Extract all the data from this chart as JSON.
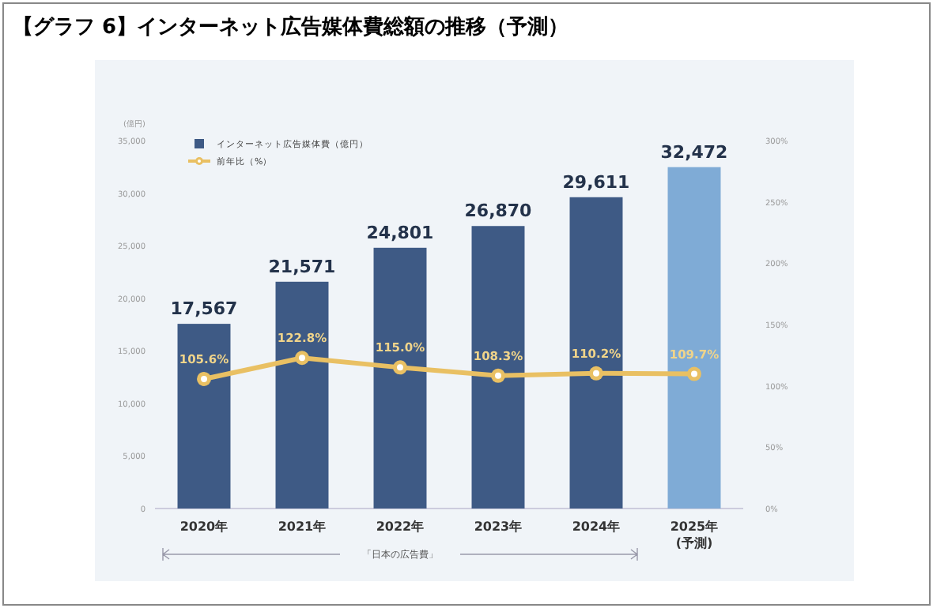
{
  "chart_data": {
    "type": "bar",
    "title": "【グラフ 6】インターネット広告媒体費総額の推移（予測）",
    "categories": [
      "2020年",
      "2021年",
      "2022年",
      "2023年",
      "2024年",
      "2025年\n(予測)"
    ],
    "series": [
      {
        "name": "インターネット広告媒体費（億円）",
        "color": "#3e5a85",
        "colors": [
          "#3e5a85",
          "#3e5a85",
          "#3e5a85",
          "#3e5a85",
          "#3e5a85",
          "#7fabd6"
        ],
        "values": [
          17567,
          21571,
          24801,
          26870,
          29611,
          32472
        ],
        "value_labels": [
          "17,567",
          "21,571",
          "24,801",
          "26,870",
          "29,611",
          "32,472"
        ]
      },
      {
        "name": "前年比（%）",
        "type": "line",
        "axis": "y2",
        "color": "#e9c063",
        "values": [
          105.6,
          122.8,
          115.0,
          108.3,
          110.2,
          109.7
        ],
        "value_labels": [
          "105.6%",
          "122.8%",
          "115.0%",
          "108.3%",
          "110.2%",
          "109.7%"
        ]
      }
    ],
    "ylabel": "(億円)",
    "ylim": [
      0,
      35000
    ],
    "yticks": [
      0,
      {
        "value": 5000,
        "label": "5,000"
      },
      {
        "value": 10000,
        "label": "10,000"
      },
      {
        "value": 15000,
        "label": "15,000"
      },
      {
        "value": 20000,
        "label": "20,000"
      },
      {
        "value": 25000,
        "label": "25,000"
      },
      {
        "value": 30000,
        "label": "30,000"
      },
      {
        "value": 35000,
        "label": "35,000"
      }
    ],
    "y2lim": [
      0,
      300
    ],
    "y2ticks": [
      {
        "value": 0,
        "label": "0%"
      },
      {
        "value": 50,
        "label": "50%"
      },
      {
        "value": 100,
        "label": "100%"
      },
      {
        "value": 150,
        "label": "150%"
      },
      {
        "value": 200,
        "label": "200%"
      },
      {
        "value": 250,
        "label": "250%"
      },
      {
        "value": 300,
        "label": "300%"
      }
    ],
    "marker": "circle",
    "legend": "top left",
    "grid": false,
    "annotations": [
      "「日本の広告費」"
    ]
  }
}
